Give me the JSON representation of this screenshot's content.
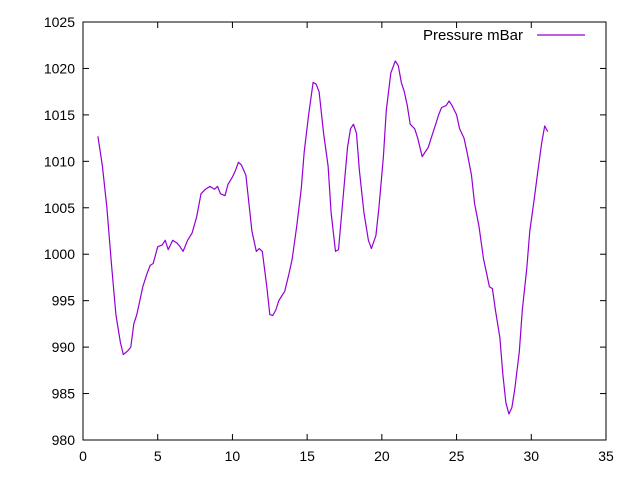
{
  "chart_data": {
    "type": "line",
    "title": "",
    "xlabel": "",
    "ylabel": "",
    "xlim": [
      0,
      35
    ],
    "ylim": [
      980,
      1025
    ],
    "xticks": [
      0,
      5,
      10,
      15,
      20,
      25,
      30,
      35
    ],
    "yticks": [
      980,
      985,
      990,
      995,
      1000,
      1005,
      1010,
      1015,
      1020,
      1025
    ],
    "grid": false,
    "legend_position": "top-right",
    "series": [
      {
        "name": "Pressure mBar",
        "color": "#9400d3",
        "points": [
          [
            1.0,
            1012.7
          ],
          [
            1.3,
            1009.5
          ],
          [
            1.6,
            1005.0
          ],
          [
            1.9,
            999.0
          ],
          [
            2.2,
            993.5
          ],
          [
            2.5,
            990.5
          ],
          [
            2.7,
            989.2
          ],
          [
            3.0,
            989.6
          ],
          [
            3.2,
            990.0
          ],
          [
            3.4,
            992.5
          ],
          [
            3.6,
            993.5
          ],
          [
            3.8,
            995.0
          ],
          [
            4.0,
            996.5
          ],
          [
            4.3,
            998.0
          ],
          [
            4.5,
            998.8
          ],
          [
            4.7,
            999.0
          ],
          [
            5.0,
            1000.8
          ],
          [
            5.3,
            1001.0
          ],
          [
            5.5,
            1001.5
          ],
          [
            5.7,
            1000.5
          ],
          [
            6.0,
            1001.5
          ],
          [
            6.3,
            1001.2
          ],
          [
            6.5,
            1000.8
          ],
          [
            6.7,
            1000.3
          ],
          [
            7.0,
            1001.5
          ],
          [
            7.3,
            1002.3
          ],
          [
            7.6,
            1004.0
          ],
          [
            7.9,
            1006.5
          ],
          [
            8.2,
            1007.0
          ],
          [
            8.5,
            1007.3
          ],
          [
            8.8,
            1007.0
          ],
          [
            9.0,
            1007.3
          ],
          [
            9.2,
            1006.5
          ],
          [
            9.5,
            1006.3
          ],
          [
            9.7,
            1007.5
          ],
          [
            10.0,
            1008.3
          ],
          [
            10.2,
            1009.0
          ],
          [
            10.4,
            1009.9
          ],
          [
            10.6,
            1009.6
          ],
          [
            10.9,
            1008.5
          ],
          [
            11.1,
            1005.5
          ],
          [
            11.3,
            1002.5
          ],
          [
            11.6,
            1000.3
          ],
          [
            11.8,
            1000.6
          ],
          [
            12.0,
            1000.3
          ],
          [
            12.3,
            996.5
          ],
          [
            12.5,
            993.5
          ],
          [
            12.7,
            993.4
          ],
          [
            12.9,
            994.0
          ],
          [
            13.1,
            995.0
          ],
          [
            13.3,
            995.5
          ],
          [
            13.5,
            996.0
          ],
          [
            13.8,
            998.0
          ],
          [
            14.0,
            999.5
          ],
          [
            14.3,
            1003.0
          ],
          [
            14.6,
            1007.0
          ],
          [
            14.8,
            1011.0
          ],
          [
            15.1,
            1015.0
          ],
          [
            15.4,
            1018.5
          ],
          [
            15.6,
            1018.3
          ],
          [
            15.8,
            1017.5
          ],
          [
            16.1,
            1013.0
          ],
          [
            16.4,
            1009.5
          ],
          [
            16.6,
            1004.5
          ],
          [
            16.9,
            1000.3
          ],
          [
            17.1,
            1000.5
          ],
          [
            17.4,
            1006.0
          ],
          [
            17.7,
            1011.5
          ],
          [
            17.9,
            1013.5
          ],
          [
            18.1,
            1014.0
          ],
          [
            18.3,
            1013.0
          ],
          [
            18.5,
            1009.0
          ],
          [
            18.8,
            1004.5
          ],
          [
            19.1,
            1001.5
          ],
          [
            19.3,
            1000.6
          ],
          [
            19.6,
            1002.0
          ],
          [
            19.8,
            1005.0
          ],
          [
            20.1,
            1010.5
          ],
          [
            20.3,
            1015.5
          ],
          [
            20.6,
            1019.5
          ],
          [
            20.9,
            1020.8
          ],
          [
            21.1,
            1020.3
          ],
          [
            21.3,
            1018.5
          ],
          [
            21.5,
            1017.5
          ],
          [
            21.7,
            1016.0
          ],
          [
            21.9,
            1014.0
          ],
          [
            22.2,
            1013.5
          ],
          [
            22.4,
            1012.5
          ],
          [
            22.7,
            1010.5
          ],
          [
            22.9,
            1011.0
          ],
          [
            23.1,
            1011.5
          ],
          [
            23.3,
            1012.5
          ],
          [
            23.6,
            1014.0
          ],
          [
            23.8,
            1015.0
          ],
          [
            24.0,
            1015.8
          ],
          [
            24.3,
            1016.0
          ],
          [
            24.5,
            1016.5
          ],
          [
            24.7,
            1016.0
          ],
          [
            25.0,
            1015.0
          ],
          [
            25.2,
            1013.5
          ],
          [
            25.5,
            1012.5
          ],
          [
            25.7,
            1011.0
          ],
          [
            26.0,
            1008.5
          ],
          [
            26.2,
            1005.5
          ],
          [
            26.5,
            1003.0
          ],
          [
            26.8,
            999.5
          ],
          [
            27.0,
            998.0
          ],
          [
            27.2,
            996.5
          ],
          [
            27.4,
            996.3
          ],
          [
            27.6,
            994.0
          ],
          [
            27.9,
            991.0
          ],
          [
            28.1,
            987.0
          ],
          [
            28.3,
            984.0
          ],
          [
            28.5,
            982.8
          ],
          [
            28.7,
            983.5
          ],
          [
            28.9,
            985.5
          ],
          [
            29.2,
            989.5
          ],
          [
            29.4,
            994.0
          ],
          [
            29.7,
            998.5
          ],
          [
            29.9,
            1002.5
          ],
          [
            30.2,
            1006.0
          ],
          [
            30.4,
            1008.5
          ],
          [
            30.7,
            1012.0
          ],
          [
            30.9,
            1013.8
          ],
          [
            31.1,
            1013.2
          ]
        ]
      }
    ]
  }
}
